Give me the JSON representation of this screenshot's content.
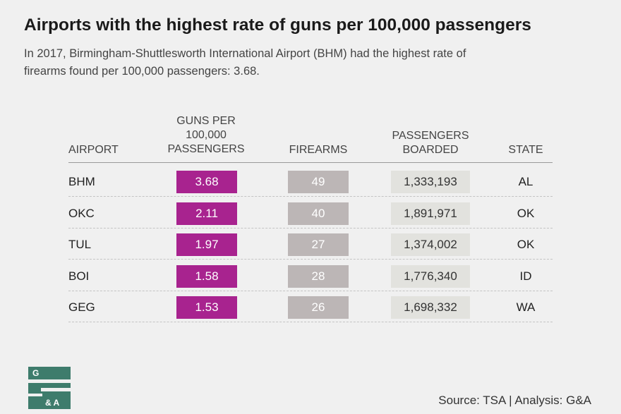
{
  "chart_data": {
    "type": "table",
    "title": "Airports with the highest rate of guns per 100,000 passengers",
    "subtitle": "In 2017, Birmingham-Shuttlesworth International Airport (BHM) had the highest rate of firearms found per 100,000 passengers: 3.68.",
    "columns": {
      "airport": "AIRPORT",
      "guns_line1": "GUNS PER",
      "guns_line2": "100,000",
      "guns_line3": "PASSENGERS",
      "firearms": "FIREARMS",
      "pass_line1": "PASSENGERS",
      "pass_line2": "BOARDED",
      "state": "STATE"
    },
    "rows": [
      {
        "airport": "BHM",
        "guns": "3.68",
        "firearms": "49",
        "passengers": "1,333,193",
        "state": "AL"
      },
      {
        "airport": "OKC",
        "guns": "2.11",
        "firearms": "40",
        "passengers": "1,891,971",
        "state": "OK"
      },
      {
        "airport": "TUL",
        "guns": "1.97",
        "firearms": "27",
        "passengers": "1,374,002",
        "state": "OK"
      },
      {
        "airport": "BOI",
        "guns": "1.58",
        "firearms": "28",
        "passengers": "1,776,340",
        "state": "ID"
      },
      {
        "airport": "GEG",
        "guns": "1.53",
        "firearms": "26",
        "passengers": "1,698,332",
        "state": "WA"
      }
    ],
    "source": "Source: TSA | Analysis: G&A"
  },
  "logo": {
    "letter": "G",
    "ampersand": "& A"
  },
  "colors": {
    "guns": "#a8238f",
    "firearms": "#bcb6b6",
    "passengers": "#e2e2de",
    "logo": "#3e7c6c"
  }
}
